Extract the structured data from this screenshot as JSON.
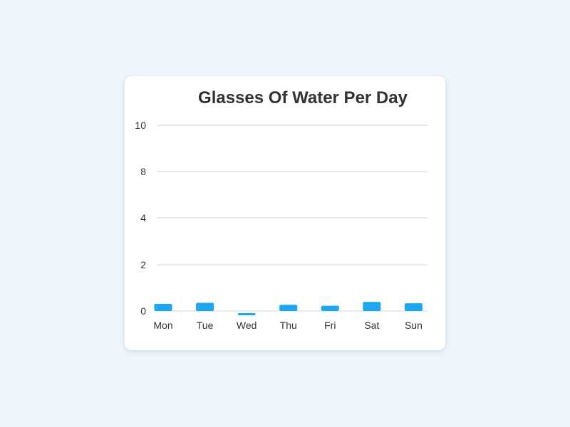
{
  "colors": {
    "page_background": "#eef5fd",
    "card_background": "#ffffff",
    "bar": "#1ea7f0",
    "gridline": "#e2e2e2",
    "text": "#333333"
  },
  "chart_data": {
    "type": "bar",
    "title": "Glasses Of Water Per Day",
    "categories": [
      "Mon",
      "Tue",
      "Wed",
      "Thu",
      "Fri",
      "Sat",
      "Sun"
    ],
    "values": [
      0.3,
      0.35,
      -0.1,
      0.25,
      0.2,
      0.4,
      0.33
    ],
    "y_ticks": [
      "10",
      "8",
      "4",
      "2",
      "0"
    ],
    "grid": true,
    "legend": "none"
  }
}
